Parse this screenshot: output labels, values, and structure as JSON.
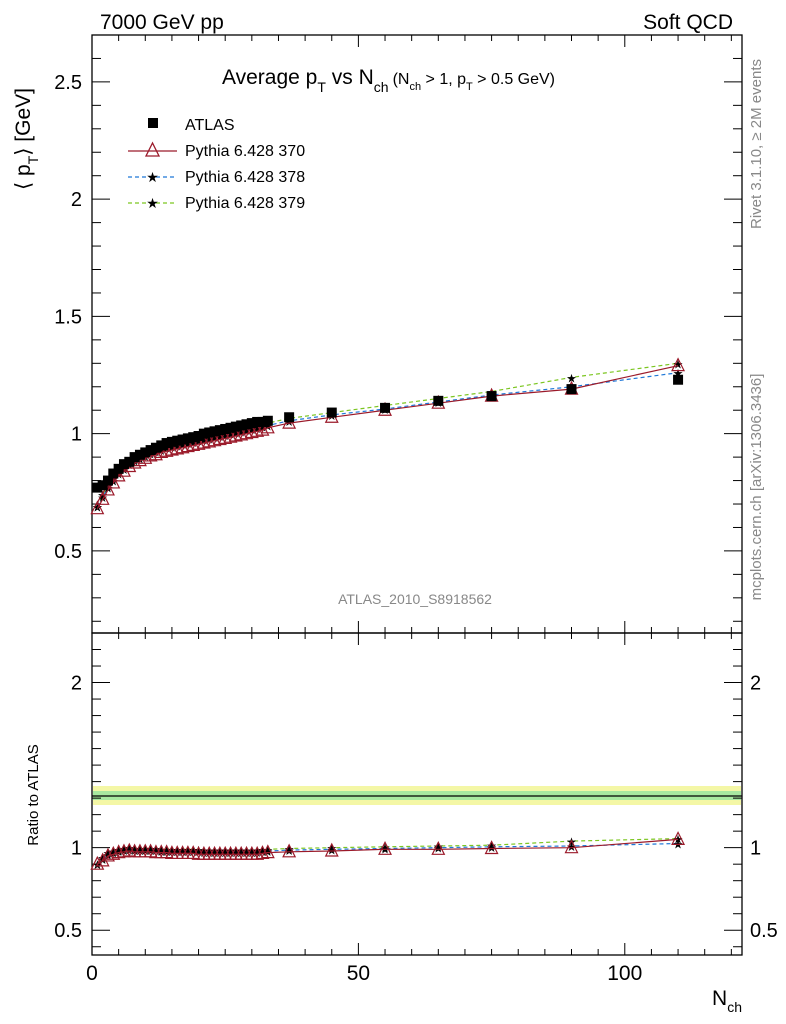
{
  "header": {
    "left": "7000 GeV pp",
    "right": "Soft QCD"
  },
  "plot": {
    "title_main": "Average p",
    "title_sub_t": "T",
    "title_vs": " vs N",
    "title_sub_ch": "ch",
    "title_cut": "(N",
    "title_cut_ch": "ch",
    "title_cut_mid": " > 1, p",
    "title_cut_t": "T",
    "title_cut_end": " > 0.5 GeV)",
    "ylabel_main": "⟨ p",
    "ylabel_sub": "T",
    "ylabel_end": "⟩  [GeV]",
    "watermark": "ATLAS_2010_S8918562"
  },
  "ratio": {
    "ylabel": "Ratio to ATLAS"
  },
  "xaxis": {
    "label": "N",
    "label_sub": "ch"
  },
  "side": {
    "rivet": "Rivet 3.1.10, ≥ 2M events",
    "mcplots": "mcplots.cern.ch [arXiv:1306.3436]"
  },
  "colors": {
    "atlas": "#000000",
    "p370": "#9b1a2a",
    "p378": "#1f78d8",
    "p379": "#7cc621",
    "band_outer": "#f4f7a6",
    "band_inner": "#a8e8a0"
  },
  "chart_data": {
    "type": "scatter",
    "x_range": [
      0,
      122
    ],
    "main": {
      "ylim": [
        0.15,
        2.7
      ],
      "yticks": [
        0.5,
        1,
        1.5,
        2,
        2.5
      ],
      "ytick_labels": [
        "0.5",
        "1",
        "1.5",
        "2",
        "2.5"
      ]
    },
    "ratio": {
      "ylim": [
        0.35,
        2.3
      ],
      "yticks": [
        0.5,
        1,
        2
      ],
      "ytick_labels": [
        "0.5",
        "1",
        "2"
      ]
    },
    "xticks": [
      0,
      50,
      100
    ],
    "xtick_labels": [
      "0",
      "50",
      "100"
    ],
    "legend_placement": "top-left",
    "series": [
      {
        "name": "ATLAS",
        "x": [
          1,
          2,
          3,
          4,
          5,
          6,
          7,
          8,
          9,
          10,
          11,
          12,
          13,
          14,
          15,
          16,
          17,
          18,
          19,
          20,
          21,
          22,
          23,
          24,
          25,
          26,
          27,
          28,
          29,
          30,
          31,
          32,
          33,
          37,
          45,
          55,
          65,
          75,
          90,
          110
        ],
        "y": [
          0.77,
          0.78,
          0.8,
          0.83,
          0.85,
          0.87,
          0.88,
          0.9,
          0.91,
          0.92,
          0.93,
          0.94,
          0.95,
          0.96,
          0.965,
          0.97,
          0.975,
          0.98,
          0.985,
          0.99,
          1.0,
          1.005,
          1.01,
          1.015,
          1.02,
          1.025,
          1.03,
          1.035,
          1.04,
          1.045,
          1.05,
          1.05,
          1.055,
          1.07,
          1.09,
          1.11,
          1.14,
          1.16,
          1.19,
          1.23
        ]
      },
      {
        "name": "Pythia 6.428 370",
        "x": [
          1,
          2,
          3,
          4,
          5,
          6,
          7,
          8,
          9,
          10,
          11,
          12,
          13,
          14,
          15,
          16,
          17,
          18,
          19,
          20,
          21,
          22,
          23,
          24,
          25,
          26,
          27,
          28,
          29,
          30,
          31,
          32,
          33,
          37,
          45,
          55,
          65,
          75,
          90,
          110
        ],
        "y": [
          0.68,
          0.72,
          0.76,
          0.79,
          0.82,
          0.84,
          0.86,
          0.875,
          0.885,
          0.895,
          0.905,
          0.91,
          0.92,
          0.925,
          0.93,
          0.935,
          0.94,
          0.945,
          0.95,
          0.955,
          0.96,
          0.965,
          0.97,
          0.975,
          0.98,
          0.985,
          0.99,
          0.995,
          1.0,
          1.005,
          1.01,
          1.015,
          1.025,
          1.045,
          1.07,
          1.1,
          1.13,
          1.16,
          1.19,
          1.29
        ]
      },
      {
        "name": "Pythia 6.428 378",
        "x": [
          1,
          2,
          3,
          4,
          5,
          6,
          7,
          8,
          9,
          10,
          11,
          12,
          13,
          14,
          15,
          16,
          17,
          18,
          19,
          20,
          21,
          22,
          23,
          24,
          25,
          26,
          27,
          28,
          29,
          30,
          31,
          32,
          33,
          37,
          45,
          55,
          65,
          75,
          90,
          110
        ],
        "y": [
          0.69,
          0.73,
          0.77,
          0.8,
          0.83,
          0.85,
          0.87,
          0.885,
          0.895,
          0.905,
          0.915,
          0.925,
          0.93,
          0.94,
          0.945,
          0.95,
          0.955,
          0.96,
          0.965,
          0.97,
          0.975,
          0.98,
          0.985,
          0.99,
          0.995,
          1.0,
          1.005,
          1.01,
          1.015,
          1.02,
          1.025,
          1.03,
          1.035,
          1.055,
          1.08,
          1.105,
          1.135,
          1.165,
          1.2,
          1.26
        ]
      },
      {
        "name": "Pythia 6.428 379",
        "x": [
          1,
          2,
          3,
          4,
          5,
          6,
          7,
          8,
          9,
          10,
          11,
          12,
          13,
          14,
          15,
          16,
          17,
          18,
          19,
          20,
          21,
          22,
          23,
          24,
          25,
          26,
          27,
          28,
          29,
          30,
          31,
          32,
          33,
          37,
          45,
          55,
          65,
          75,
          90,
          110
        ],
        "y": [
          0.69,
          0.74,
          0.78,
          0.81,
          0.84,
          0.86,
          0.88,
          0.895,
          0.905,
          0.915,
          0.925,
          0.935,
          0.94,
          0.95,
          0.955,
          0.96,
          0.965,
          0.97,
          0.975,
          0.98,
          0.985,
          0.99,
          0.995,
          1.0,
          1.005,
          1.01,
          1.015,
          1.02,
          1.025,
          1.03,
          1.035,
          1.04,
          1.045,
          1.065,
          1.09,
          1.12,
          1.15,
          1.18,
          1.24,
          1.3
        ]
      }
    ],
    "ratio_series": [
      {
        "name": "Pythia 6.428 370",
        "x": [
          1,
          2,
          3,
          4,
          5,
          6,
          7,
          8,
          9,
          10,
          11,
          12,
          13,
          14,
          15,
          16,
          17,
          18,
          19,
          20,
          21,
          22,
          23,
          24,
          25,
          26,
          27,
          28,
          29,
          30,
          31,
          32,
          33,
          37,
          45,
          55,
          65,
          75,
          90,
          110
        ],
        "y": [
          0.9,
          0.92,
          0.95,
          0.96,
          0.97,
          0.975,
          0.98,
          0.975,
          0.975,
          0.975,
          0.975,
          0.97,
          0.97,
          0.97,
          0.965,
          0.965,
          0.965,
          0.965,
          0.965,
          0.96,
          0.96,
          0.96,
          0.96,
          0.96,
          0.96,
          0.96,
          0.96,
          0.96,
          0.96,
          0.96,
          0.96,
          0.965,
          0.97,
          0.975,
          0.98,
          0.99,
          0.99,
          0.995,
          1.0,
          1.05
        ]
      },
      {
        "name": "Pythia 6.428 378",
        "x": [
          1,
          2,
          3,
          4,
          5,
          6,
          7,
          8,
          9,
          10,
          11,
          12,
          13,
          14,
          15,
          16,
          17,
          18,
          19,
          20,
          21,
          22,
          23,
          24,
          25,
          26,
          27,
          28,
          29,
          30,
          31,
          32,
          33,
          37,
          45,
          55,
          65,
          75,
          90,
          110
        ],
        "y": [
          0.9,
          0.93,
          0.96,
          0.97,
          0.98,
          0.985,
          0.99,
          0.985,
          0.985,
          0.985,
          0.985,
          0.985,
          0.98,
          0.98,
          0.98,
          0.98,
          0.98,
          0.98,
          0.98,
          0.98,
          0.975,
          0.975,
          0.975,
          0.975,
          0.975,
          0.975,
          0.975,
          0.975,
          0.975,
          0.975,
          0.975,
          0.98,
          0.98,
          0.985,
          0.99,
          0.995,
          1.0,
          1.005,
          1.01,
          1.025
        ]
      },
      {
        "name": "Pythia 6.428 379",
        "x": [
          1,
          2,
          3,
          4,
          5,
          6,
          7,
          8,
          9,
          10,
          11,
          12,
          13,
          14,
          15,
          16,
          17,
          18,
          19,
          20,
          21,
          22,
          23,
          24,
          25,
          26,
          27,
          28,
          29,
          30,
          31,
          32,
          33,
          37,
          45,
          55,
          65,
          75,
          90,
          110
        ],
        "y": [
          0.9,
          0.94,
          0.97,
          0.98,
          0.99,
          0.995,
          1.0,
          0.995,
          0.995,
          0.995,
          0.995,
          0.995,
          0.99,
          0.99,
          0.99,
          0.99,
          0.99,
          0.99,
          0.99,
          0.99,
          0.985,
          0.985,
          0.985,
          0.985,
          0.985,
          0.985,
          0.985,
          0.985,
          0.985,
          0.985,
          0.985,
          0.99,
          0.99,
          0.995,
          1.0,
          1.005,
          1.01,
          1.015,
          1.04,
          1.055
        ]
      }
    ]
  }
}
